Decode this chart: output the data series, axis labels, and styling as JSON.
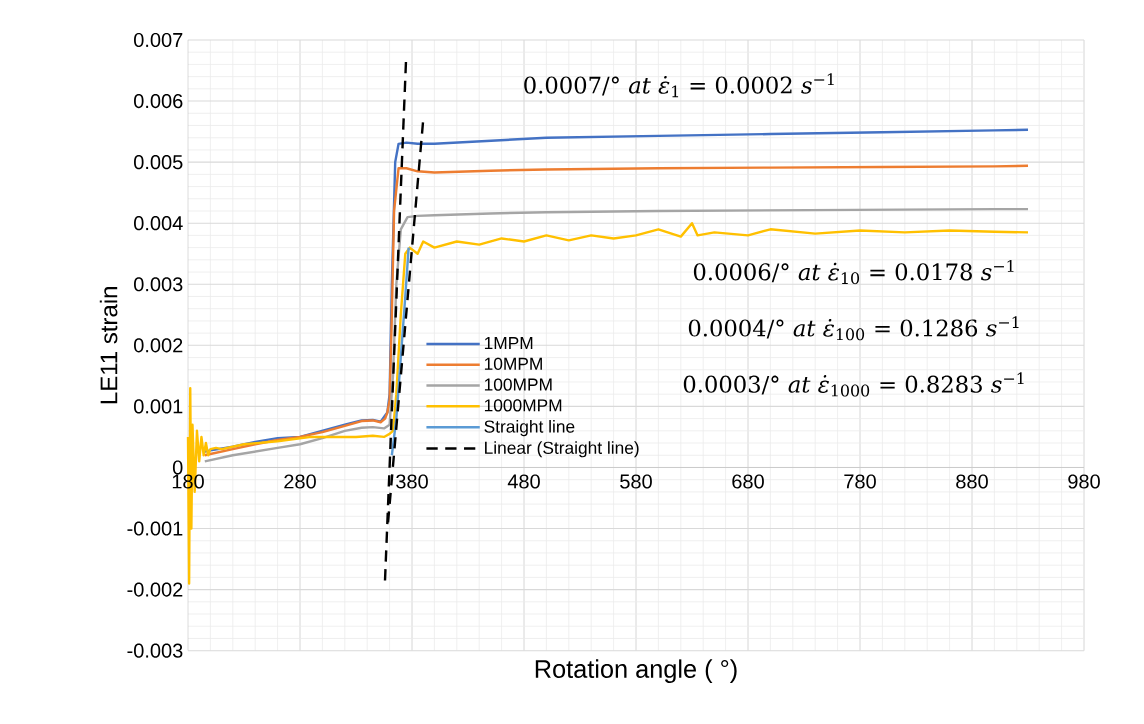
{
  "chart_data": {
    "type": "line",
    "xlabel": "Rotation angle ( °)",
    "ylabel": "LE11 strain",
    "xlim": [
      180,
      980
    ],
    "xticks": [
      180,
      280,
      380,
      480,
      580,
      680,
      780,
      880,
      980
    ],
    "ylim": [
      -0.003,
      0.007
    ],
    "yticks": [
      -0.003,
      -0.002,
      -0.001,
      0,
      0.001,
      0.002,
      0.003,
      0.004,
      0.005,
      0.006,
      0.007
    ],
    "grid": true,
    "legend": "center",
    "marker": "none",
    "line_style": "solid",
    "annotations": [
      "0.0007/° *at* *ε̇*$_{1}$ = 0.0002 *s*$^{−1}$",
      "0.0006/° *at* *ε̇*$_{10}$ = 0.0178 *s*$^{−1}$",
      "0.0004/° *at* *ε̇*$_{100}$ = 0.1286 *s*$^{−1}$",
      "0.0003/° *at* *ε̇*$_{1000}$ = 0.8283 *s*$^{−1}$"
    ],
    "series": [
      {
        "name": "1MPM",
        "color": "#4472c4",
        "x": [
          195,
          200,
          220,
          240,
          260,
          280,
          300,
          320,
          335,
          345,
          352,
          356,
          358,
          360,
          362,
          365,
          368,
          375,
          385,
          400,
          450,
          500,
          600,
          700,
          800,
          900,
          930
        ],
        "values": [
          0.00026,
          0.00028,
          0.00034,
          0.00042,
          0.00048,
          0.0005,
          0.0006,
          0.0007,
          0.00077,
          0.00078,
          0.00075,
          0.00085,
          0.0009,
          0.0012,
          0.003,
          0.005,
          0.0053,
          0.00532,
          0.0053,
          0.0053,
          0.00535,
          0.0054,
          0.00543,
          0.00546,
          0.00549,
          0.00552,
          0.00553
        ]
      },
      {
        "name": "10MPM",
        "color": "#ed7d31",
        "x": [
          195,
          200,
          220,
          240,
          260,
          280,
          300,
          320,
          335,
          345,
          352,
          356,
          358,
          360,
          362,
          364,
          368,
          375,
          385,
          400,
          450,
          500,
          600,
          700,
          800,
          900,
          930
        ],
        "values": [
          0.0002,
          0.00022,
          0.0003,
          0.00038,
          0.00045,
          0.0005,
          0.00058,
          0.00068,
          0.00076,
          0.00077,
          0.00074,
          0.0008,
          0.0009,
          0.0011,
          0.0025,
          0.0042,
          0.0049,
          0.0049,
          0.00485,
          0.00483,
          0.00486,
          0.00488,
          0.0049,
          0.00491,
          0.00492,
          0.00493,
          0.00494
        ]
      },
      {
        "name": "100MPM",
        "color": "#a5a5a5",
        "x": [
          195,
          220,
          260,
          280,
          300,
          320,
          335,
          345,
          355,
          360,
          363,
          366,
          370,
          376,
          385,
          400,
          450,
          500,
          600,
          700,
          800,
          900,
          930
        ],
        "values": [
          0.0001,
          0.0002,
          0.00032,
          0.00038,
          0.00048,
          0.0006,
          0.00065,
          0.00066,
          0.00064,
          0.0007,
          0.0015,
          0.003,
          0.0039,
          0.0041,
          0.00412,
          0.00413,
          0.00416,
          0.00418,
          0.0042,
          0.00421,
          0.00422,
          0.00423,
          0.00423
        ]
      },
      {
        "name": "1000MPM",
        "color": "#ffc000",
        "x": [
          180,
          181,
          182,
          183,
          184,
          186,
          188,
          190,
          192,
          194,
          196,
          198,
          200,
          205,
          210,
          230,
          260,
          290,
          310,
          330,
          345,
          355,
          360,
          363,
          366,
          370,
          374,
          378,
          385,
          390,
          400,
          420,
          440,
          460,
          480,
          500,
          520,
          540,
          560,
          580,
          600,
          620,
          630,
          635,
          650,
          680,
          700,
          740,
          780,
          820,
          860,
          900,
          930
        ],
        "values": [
          0.0005,
          -0.0019,
          0.0013,
          -0.001,
          0.0007,
          -0.0004,
          0.0006,
          0.0001,
          0.0005,
          0.0002,
          0.0004,
          0.0002,
          0.0003,
          0.00032,
          0.0003,
          0.00038,
          0.00043,
          0.0005,
          0.0005,
          0.0005,
          0.00052,
          0.0005,
          0.00055,
          0.0006,
          0.0012,
          0.0025,
          0.0035,
          0.0036,
          0.0035,
          0.0037,
          0.0036,
          0.0037,
          0.00365,
          0.00375,
          0.0037,
          0.0038,
          0.00372,
          0.0038,
          0.00375,
          0.0038,
          0.0039,
          0.00378,
          0.004,
          0.0038,
          0.00385,
          0.0038,
          0.0039,
          0.00383,
          0.00388,
          0.00385,
          0.00388,
          0.00386,
          0.00385
        ]
      },
      {
        "name": "Straight line",
        "color": "#5b9bd5",
        "x": [
          362,
          366,
          370,
          374,
          377
        ],
        "values": [
          0.0002,
          0.0008,
          0.0018,
          0.0028,
          0.0036
        ]
      },
      {
        "name": "Linear (Straight line)",
        "color": "#000000",
        "line_style": "dashed",
        "x": [
          355.9,
          374.6
        ],
        "values": [
          -0.00185,
          0.00664
        ]
      },
      {
        "color": "#000000",
        "line_style": "dashed",
        "x": [
          358.6,
          389.8
        ],
        "values": [
          -0.0009,
          0.00565
        ]
      }
    ]
  }
}
